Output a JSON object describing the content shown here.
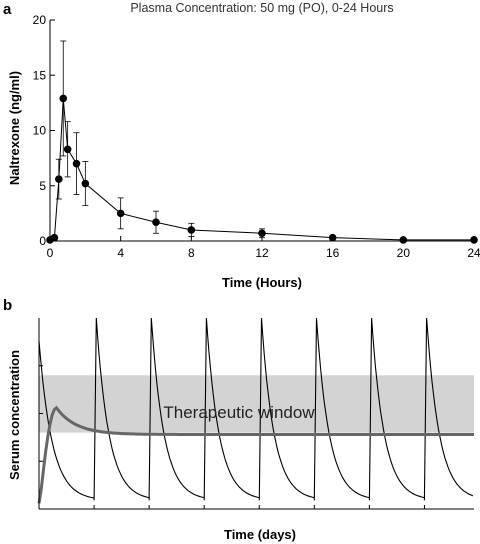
{
  "chart_data": [
    {
      "panel": "a",
      "type": "line",
      "title": "Plasma Concentration: 50 mg (PO), 0-24 Hours",
      "xlabel": "Time (Hours)",
      "ylabel": "Naltrexone (ng/ml)",
      "xlim": [
        0,
        24
      ],
      "ylim": [
        0,
        20
      ],
      "xticks": [
        0,
        4,
        8,
        12,
        16,
        20,
        24
      ],
      "yticks": [
        0,
        5,
        10,
        15,
        20
      ],
      "grid": false,
      "series": [
        {
          "x": [
            0,
            0.25,
            0.5,
            0.75,
            1,
            1.5,
            2,
            4,
            6,
            8,
            12,
            16,
            20,
            24
          ],
          "y": [
            0.1,
            0.3,
            5.6,
            12.9,
            8.3,
            7.0,
            5.2,
            2.5,
            1.7,
            1.0,
            0.7,
            0.3,
            0.1,
            0.1
          ],
          "error": [
            0.1,
            0.2,
            1.8,
            5.2,
            2.5,
            2.8,
            2.0,
            1.4,
            1.0,
            0.6,
            0.4,
            0.2,
            0.1,
            0.1
          ]
        }
      ]
    },
    {
      "panel": "b",
      "type": "line",
      "xlabel": "Time (days)",
      "ylabel": "Serum concentration",
      "annotation": "Therapeutic window",
      "grid": false,
      "therapeutic_window": [
        0.4,
        0.7
      ],
      "oscillating_doses": 8,
      "series": [
        {
          "style": "thin black",
          "profile": "repeated oral dosing: rapid peak then exponential decay each day"
        },
        {
          "style": "thick grey",
          "profile": "sustained release: rises to a small peak then plateaus inside the therapeutic window"
        }
      ]
    }
  ]
}
